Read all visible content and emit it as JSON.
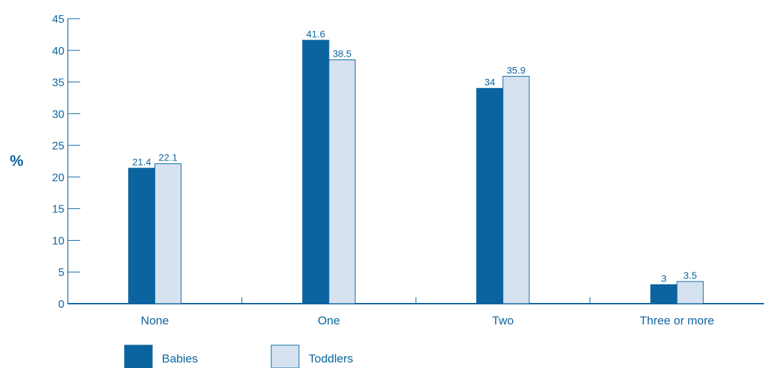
{
  "chart_data": {
    "type": "bar",
    "ylabel": "%",
    "xlabel": "",
    "ylim": [
      0,
      45
    ],
    "yticks": [
      0,
      5,
      10,
      15,
      20,
      25,
      30,
      35,
      40,
      45
    ],
    "categories": [
      "None",
      "One",
      "Two",
      "Three or more"
    ],
    "series": [
      {
        "name": "Babies",
        "values": [
          21.4,
          41.6,
          34,
          3
        ],
        "color": "#0b64a0"
      },
      {
        "name": "Toddlers",
        "values": [
          22.1,
          38.5,
          35.9,
          3.5
        ],
        "color": "#d6e2f0"
      }
    ],
    "legend_position": "bottom-left",
    "grid": false,
    "axis_color": "#0b64a0"
  }
}
